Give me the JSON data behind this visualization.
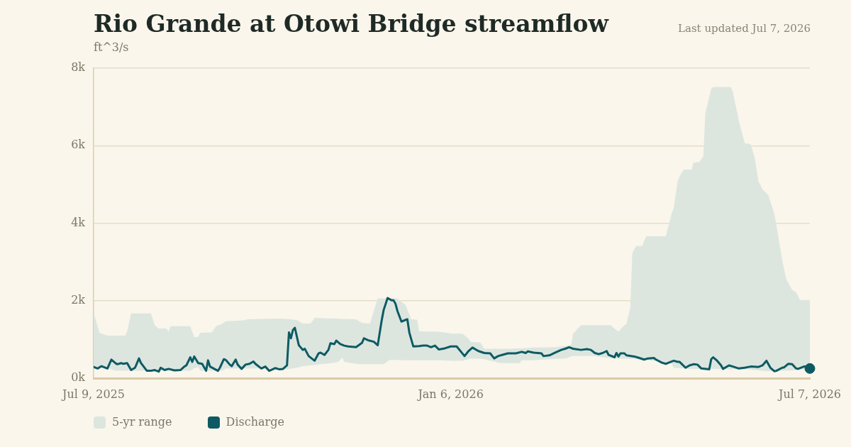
{
  "chart_data": {
    "type": "line",
    "title": "Rio Grande at Otowi Bridge streamflow",
    "subtitle": "ft^3/s",
    "annotations": [
      "Last updated Jul 7, 2026"
    ],
    "xlim": [
      "2025-07-09",
      "2026-07-07"
    ],
    "xticks": [
      {
        "value": "2025-07-09",
        "label": "Jul 9, 2025"
      },
      {
        "value": "2026-01-06",
        "label": "Jan 6, 2026"
      },
      {
        "value": "2026-07-07",
        "label": "Jul 7, 2026"
      }
    ],
    "ylim": [
      0,
      8000
    ],
    "yticks": [
      {
        "value": 0,
        "label": "0k"
      },
      {
        "value": 2000,
        "label": "2k"
      },
      {
        "value": 4000,
        "label": "4k"
      },
      {
        "value": 6000,
        "label": "6k"
      },
      {
        "value": 8000,
        "label": "8k"
      }
    ],
    "grid": "y",
    "legend": "bottom left",
    "series": [
      {
        "name": "5-yr range",
        "type": "area",
        "color": "#dce6df",
        "x": [
          "2025-07-09",
          "2025-07-11",
          "2025-07-12",
          "2025-07-16",
          "2025-07-20",
          "2025-07-25",
          "2025-07-26",
          "2025-07-28",
          "2025-08-07",
          "2025-08-09",
          "2025-08-11",
          "2025-08-15",
          "2025-08-16",
          "2025-08-17",
          "2025-08-27",
          "2025-08-29",
          "2025-08-31",
          "2025-09-01",
          "2025-09-07",
          "2025-09-09",
          "2025-09-12",
          "2025-09-14",
          "2025-09-23",
          "2025-09-25",
          "2025-10-10",
          "2025-10-15",
          "2025-10-20",
          "2025-10-23",
          "2025-10-27",
          "2025-10-29",
          "2025-11-01",
          "2025-11-07",
          "2025-11-10",
          "2025-11-12",
          "2025-11-13",
          "2025-11-19",
          "2025-11-22",
          "2025-11-26",
          "2025-11-30",
          "2025-12-03",
          "2025-12-06",
          "2025-12-10",
          "2025-12-14",
          "2025-12-17",
          "2025-12-20",
          "2025-12-21",
          "2025-12-31",
          "2026-01-07",
          "2026-01-12",
          "2026-01-15",
          "2026-01-16",
          "2026-01-21",
          "2026-01-23",
          "2026-01-31",
          "2026-02-05",
          "2026-02-10",
          "2026-02-11",
          "2026-02-17",
          "2026-02-22",
          "2026-02-28",
          "2026-03-05",
          "2026-03-08",
          "2026-03-09",
          "2026-03-13",
          "2026-03-20",
          "2026-03-25",
          "2026-03-28",
          "2026-04-01",
          "2026-04-03",
          "2026-04-05",
          "2026-04-07",
          "2026-04-08",
          "2026-04-10",
          "2026-04-13",
          "2026-04-15",
          "2026-04-19",
          "2026-04-25",
          "2026-04-28",
          "2026-04-29",
          "2026-05-01",
          "2026-05-02",
          "2026-05-04",
          "2026-05-05",
          "2026-05-08",
          "2026-05-09",
          "2026-05-12",
          "2026-05-14",
          "2026-05-15",
          "2026-05-18",
          "2026-05-19",
          "2026-05-28",
          "2026-05-29",
          "2026-06-01",
          "2026-06-04",
          "2026-06-06",
          "2026-06-07",
          "2026-06-09",
          "2026-06-11",
          "2026-06-12",
          "2026-06-13",
          "2026-06-16",
          "2026-06-18",
          "2026-06-19",
          "2026-06-20",
          "2026-06-23",
          "2026-06-25",
          "2026-06-28",
          "2026-06-30",
          "2026-07-02",
          "2026-07-07"
        ],
        "values": [
          null,
          null,
          null,
          null,
          null,
          null,
          null,
          null,
          null,
          null,
          null,
          null,
          null,
          null,
          null,
          null,
          null,
          null,
          null,
          null,
          null,
          null,
          null,
          null,
          null,
          null,
          null,
          null,
          null,
          null,
          null,
          null,
          null,
          null,
          null,
          null,
          null,
          null,
          null,
          null,
          null,
          null,
          null,
          null,
          null,
          null,
          null,
          null,
          null,
          null,
          null,
          null,
          null,
          null,
          null,
          null,
          null,
          null,
          null,
          null,
          null,
          null,
          null,
          null,
          null,
          null,
          null,
          null,
          null,
          null,
          null,
          null,
          null,
          null,
          null,
          null,
          null,
          null,
          null,
          null,
          null,
          null,
          null,
          null,
          null,
          null,
          null,
          null,
          null,
          null,
          null,
          null,
          null,
          null,
          null,
          null,
          null,
          null,
          null,
          null,
          null,
          null,
          null,
          null,
          null,
          null,
          null,
          null,
          null,
          null
        ],
        "upper": [
          1700,
          1340,
          1170,
          1100,
          1100,
          1100,
          1210,
          1670,
          1670,
          1370,
          1280,
          1280,
          1200,
          1340,
          1340,
          1060,
          1060,
          1170,
          1180,
          1340,
          1400,
          1470,
          1490,
          1520,
          1540,
          1530,
          1500,
          1410,
          1410,
          1550,
          1550,
          1540,
          1540,
          1530,
          1530,
          1520,
          1430,
          1410,
          2060,
          2060,
          2060,
          2060,
          1890,
          1520,
          1510,
          1210,
          1200,
          1150,
          1150,
          1020,
          940,
          920,
          760,
          760,
          760,
          770,
          770,
          790,
          790,
          800,
          830,
          860,
          1150,
          1370,
          1370,
          1370,
          1370,
          1200,
          1320,
          1400,
          1820,
          3230,
          3410,
          3410,
          3660,
          3660,
          3660,
          4260,
          4390,
          5090,
          5210,
          5380,
          5380,
          5380,
          5560,
          5580,
          5730,
          6830,
          7470,
          7510,
          7510,
          7380,
          6640,
          6060,
          6050,
          6030,
          5700,
          5060,
          4980,
          4870,
          4720,
          4400,
          4230,
          3960,
          3040,
          2560,
          2280,
          2220,
          2020,
          2020
        ],
        "lower": [
          270,
          270,
          270,
          270,
          190,
          190,
          190,
          190,
          190,
          190,
          190,
          190,
          190,
          190,
          190,
          250,
          290,
          190,
          190,
          190,
          190,
          250,
          250,
          250,
          250,
          230,
          270,
          310,
          330,
          340,
          360,
          390,
          420,
          530,
          420,
          370,
          360,
          360,
          360,
          360,
          470,
          470,
          460,
          460,
          460,
          460,
          460,
          450,
          450,
          490,
          510,
          500,
          490,
          390,
          390,
          390,
          460,
          460,
          480,
          500,
          510,
          560,
          570,
          570,
          570,
          530,
          520,
          510,
          500,
          500,
          500,
          500,
          490,
          480,
          470,
          450,
          400,
          370,
          270,
          260,
          260,
          250,
          240,
          240,
          240,
          240,
          240,
          240,
          240,
          240,
          230,
          230,
          230,
          230,
          230,
          220,
          210,
          200,
          190,
          190,
          180,
          180,
          180,
          180,
          190,
          190,
          200,
          210,
          220,
          240
        ]
      },
      {
        "name": "Discharge",
        "type": "line",
        "color": "#0e5a63",
        "x": [
          "2025-07-09",
          "2025-07-11",
          "2025-07-13",
          "2025-07-16",
          "2025-07-18",
          "2025-07-20",
          "2025-07-21",
          "2025-07-23",
          "2025-07-24",
          "2025-07-26",
          "2025-07-28",
          "2025-07-30",
          "2025-08-01",
          "2025-08-02",
          "2025-08-05",
          "2025-08-07",
          "2025-08-09",
          "2025-08-11",
          "2025-08-12",
          "2025-08-14",
          "2025-08-16",
          "2025-08-19",
          "2025-08-22",
          "2025-08-24",
          "2025-08-25",
          "2025-08-27",
          "2025-08-28",
          "2025-08-29",
          "2025-08-31",
          "2025-09-02",
          "2025-09-04",
          "2025-09-05",
          "2025-09-06",
          "2025-09-10",
          "2025-09-11",
          "2025-09-13",
          "2025-09-14",
          "2025-09-16",
          "2025-09-17",
          "2025-09-19",
          "2025-09-20",
          "2025-09-22",
          "2025-09-24",
          "2025-09-26",
          "2025-09-28",
          "2025-09-29",
          "2025-10-02",
          "2025-10-04",
          "2025-10-06",
          "2025-10-09",
          "2025-10-11",
          "2025-10-13",
          "2025-10-15",
          "2025-10-16",
          "2025-10-17",
          "2025-10-18",
          "2025-10-19",
          "2025-10-21",
          "2025-10-23",
          "2025-10-24",
          "2025-10-26",
          "2025-10-29",
          "2025-10-31",
          "2025-11-01",
          "2025-11-03",
          "2025-11-05",
          "2025-11-06",
          "2025-11-08",
          "2025-11-09",
          "2025-11-11",
          "2025-11-13",
          "2025-11-15",
          "2025-11-19",
          "2025-11-22",
          "2025-11-23",
          "2025-11-25",
          "2025-11-28",
          "2025-11-30",
          "2025-12-02",
          "2025-12-03",
          "2025-12-05",
          "2025-12-07",
          "2025-12-08",
          "2025-12-09",
          "2025-12-10",
          "2025-12-12",
          "2025-12-15",
          "2025-12-16",
          "2025-12-18",
          "2025-12-21",
          "2025-12-23",
          "2025-12-25",
          "2025-12-27",
          "2025-12-29",
          "2025-12-31",
          "2026-01-03",
          "2026-01-06",
          "2026-01-09",
          "2026-01-13",
          "2026-01-15",
          "2026-01-17",
          "2026-01-20",
          "2026-01-23",
          "2026-01-26",
          "2026-01-28",
          "2026-01-30",
          "2026-02-01",
          "2026-02-04",
          "2026-02-08",
          "2026-02-11",
          "2026-02-13",
          "2026-02-14",
          "2026-02-17",
          "2026-02-21",
          "2026-02-22",
          "2026-02-25",
          "2026-02-28",
          "2026-03-03",
          "2026-03-05",
          "2026-03-07",
          "2026-03-09",
          "2026-03-13",
          "2026-03-16",
          "2026-03-18",
          "2026-03-20",
          "2026-03-22",
          "2026-03-24",
          "2026-03-26",
          "2026-03-27",
          "2026-03-30",
          "2026-03-31",
          "2026-04-01",
          "2026-04-02",
          "2026-04-04",
          "2026-04-05",
          "2026-04-09",
          "2026-04-11",
          "2026-04-14",
          "2026-04-16",
          "2026-04-19",
          "2026-04-20",
          "2026-04-23",
          "2026-04-25",
          "2026-04-26",
          "2026-04-29",
          "2026-05-01",
          "2026-05-02",
          "2026-05-05",
          "2026-05-07",
          "2026-05-09",
          "2026-05-11",
          "2026-05-13",
          "2026-05-17",
          "2026-05-18",
          "2026-05-19",
          "2026-05-21",
          "2026-05-23",
          "2026-05-24",
          "2026-05-27",
          "2026-05-29",
          "2026-06-01",
          "2026-06-04",
          "2026-06-07",
          "2026-06-11",
          "2026-06-13",
          "2026-06-15",
          "2026-06-17",
          "2026-06-19",
          "2026-06-20",
          "2026-06-23",
          "2026-06-24",
          "2026-06-26",
          "2026-06-28",
          "2026-06-30",
          "2026-07-01",
          "2026-07-04",
          "2026-07-06",
          "2026-07-07"
        ],
        "values": [
          290,
          250,
          310,
          250,
          480,
          390,
          360,
          390,
          370,
          390,
          210,
          270,
          510,
          390,
          190,
          190,
          210,
          170,
          270,
          210,
          240,
          200,
          210,
          300,
          330,
          540,
          420,
          560,
          390,
          370,
          190,
          460,
          300,
          190,
          270,
          490,
          470,
          350,
          310,
          480,
          350,
          240,
          350,
          370,
          430,
          370,
          250,
          300,
          190,
          260,
          230,
          240,
          330,
          1180,
          1030,
          1240,
          1300,
          850,
          730,
          760,
          570,
          450,
          640,
          660,
          600,
          730,
          900,
          880,
          970,
          880,
          840,
          820,
          800,
          910,
          1030,
          980,
          940,
          850,
          1490,
          1760,
          2070,
          2010,
          2010,
          1920,
          1730,
          1460,
          1520,
          1180,
          820,
          830,
          840,
          840,
          800,
          840,
          740,
          770,
          820,
          820,
          570,
          700,
          790,
          700,
          650,
          640,
          510,
          570,
          600,
          640,
          640,
          680,
          650,
          690,
          660,
          640,
          570,
          590,
          660,
          730,
          760,
          800,
          760,
          730,
          750,
          730,
          650,
          620,
          650,
          700,
          600,
          540,
          650,
          560,
          640,
          640,
          590,
          560,
          530,
          480,
          510,
          520,
          480,
          400,
          370,
          390,
          450,
          420,
          420,
          270,
          330,
          360,
          350,
          250,
          230,
          490,
          540,
          450,
          330,
          240,
          330,
          300,
          250,
          270,
          300,
          290,
          330,
          450,
          270,
          180,
          190,
          270,
          280,
          370,
          360,
          250,
          240,
          300,
          300,
          250
        ]
      },
      {
        "type": "scatter",
        "color": "#0e5a63",
        "marker": "circle",
        "x": [
          "2026-07-07"
        ],
        "values": [
          250
        ]
      }
    ]
  }
}
